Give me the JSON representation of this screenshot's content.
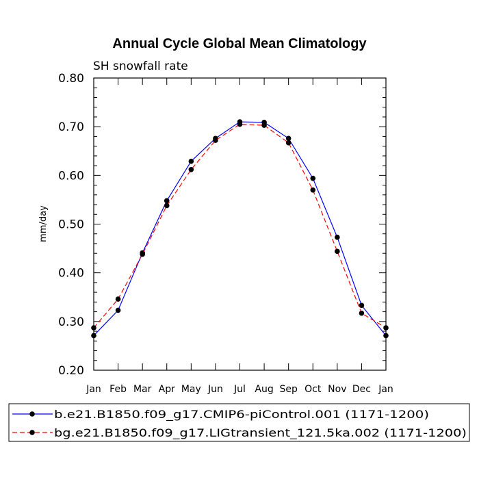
{
  "chart_data": {
    "type": "line",
    "title": "Annual Cycle Global Mean Climatology",
    "subtitle": "SH snowfall rate",
    "xlabel": "",
    "ylabel": "mm/day",
    "ylim": [
      0.2,
      0.8
    ],
    "yticks": [
      "0.20",
      "0.30",
      "0.40",
      "0.50",
      "0.60",
      "0.70",
      "0.80"
    ],
    "categories": [
      "Jan",
      "Feb",
      "Mar",
      "Apr",
      "May",
      "Jun",
      "Jul",
      "Aug",
      "Sep",
      "Oct",
      "Nov",
      "Dec",
      "Jan"
    ],
    "grid": false,
    "legend_position": "bottom",
    "series": [
      {
        "name": "b.e21.B1850.f09_g17.CMIP6-piControl.001 (1171-1200)",
        "color": "#0000ff",
        "line_style": "solid",
        "marker": "filled-circle",
        "values": [
          0.271,
          0.323,
          0.441,
          0.548,
          0.629,
          0.676,
          0.71,
          0.709,
          0.676,
          0.594,
          0.473,
          0.333,
          0.271
        ]
      },
      {
        "name": "bg.e21.B1850.f09_g17.LIGtransient_121.5ka.002 (1171-1200)",
        "color": "#ff0000",
        "line_style": "dashed",
        "marker": "filled-circle",
        "values": [
          0.287,
          0.346,
          0.438,
          0.538,
          0.612,
          0.672,
          0.705,
          0.703,
          0.667,
          0.57,
          0.444,
          0.317,
          0.287
        ]
      }
    ]
  }
}
